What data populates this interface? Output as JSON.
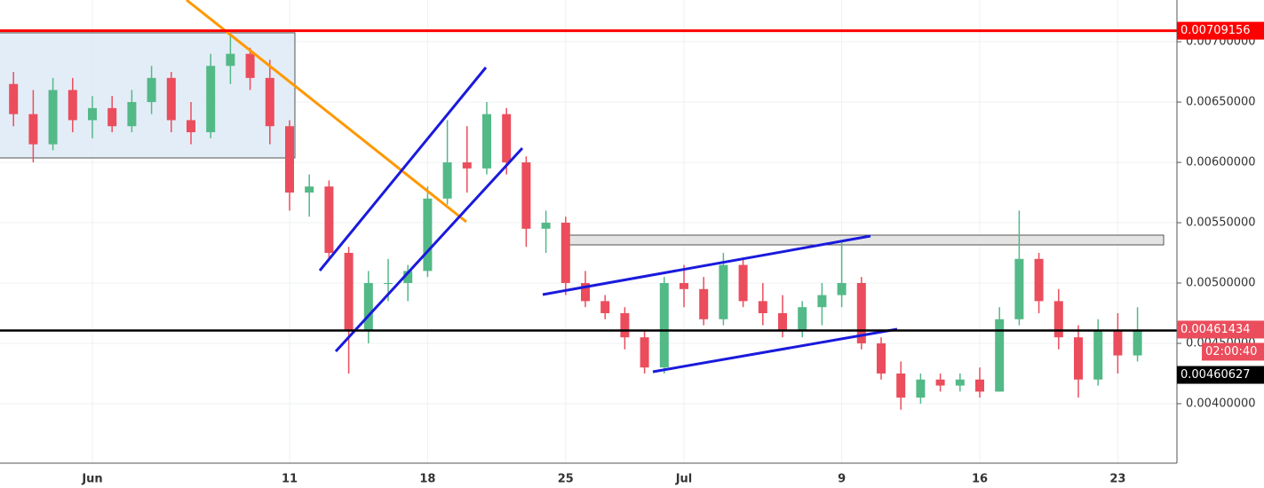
{
  "chart_data": {
    "type": "candlestick",
    "categories": [
      null,
      null,
      null,
      null,
      "Jun",
      null,
      null,
      null,
      null,
      null,
      null,
      null,
      null,
      null,
      "11",
      null,
      null,
      null,
      null,
      null,
      null,
      "18",
      null,
      null,
      null,
      null,
      null,
      null,
      "25",
      null,
      null,
      null,
      null,
      null,
      "Jul",
      null,
      null,
      null,
      null,
      null,
      null,
      null,
      "9",
      null,
      null,
      null,
      null,
      null,
      null,
      "16",
      null,
      null,
      null,
      null,
      null,
      null,
      "23",
      null
    ],
    "open": [
      0.00665,
      0.0064,
      0.00615,
      0.0066,
      0.00635,
      0.00645,
      0.0063,
      0.0065,
      0.0067,
      0.00635,
      0.00625,
      0.0068,
      0.0069,
      0.0067,
      0.0063,
      0.00575,
      0.0058,
      0.00525,
      0.0046,
      0.005,
      0.005,
      0.0051,
      0.0057,
      0.006,
      0.00595,
      0.0064,
      0.006,
      0.00545,
      0.0055,
      0.005,
      0.00485,
      0.00475,
      0.00455,
      0.0043,
      0.005,
      0.00495,
      0.0047,
      0.00515,
      0.00485,
      0.00475,
      0.0046,
      0.0048,
      0.0049,
      0.005,
      0.0045,
      0.00425,
      0.00405,
      0.0042,
      0.00415,
      0.0042,
      0.0041,
      0.0047,
      0.0052,
      0.00485,
      0.00455,
      0.0042,
      0.0046,
      0.0044
    ],
    "high": [
      0.00675,
      0.0066,
      0.0067,
      0.0067,
      0.00655,
      0.00655,
      0.0066,
      0.0068,
      0.00675,
      0.0065,
      0.0069,
      0.00705,
      0.00695,
      0.00685,
      0.00635,
      0.0059,
      0.00585,
      0.0053,
      0.0051,
      0.0052,
      0.00515,
      0.0058,
      0.00635,
      0.0063,
      0.0065,
      0.00645,
      0.00605,
      0.0056,
      0.00555,
      0.0051,
      0.0049,
      0.0048,
      0.0046,
      0.00505,
      0.00515,
      0.00505,
      0.00525,
      0.0052,
      0.005,
      0.0049,
      0.00485,
      0.005,
      0.00535,
      0.00505,
      0.00455,
      0.00435,
      0.00425,
      0.00425,
      0.00425,
      0.0043,
      0.0048,
      0.0056,
      0.00525,
      0.00495,
      0.00465,
      0.0047,
      0.00475,
      0.0048
    ],
    "low": [
      0.0063,
      0.006,
      0.0061,
      0.00625,
      0.0062,
      0.00625,
      0.00625,
      0.0064,
      0.00625,
      0.00615,
      0.0062,
      0.00665,
      0.0066,
      0.00615,
      0.0056,
      0.00555,
      0.0052,
      0.00425,
      0.0045,
      0.00485,
      0.00485,
      0.00505,
      0.00565,
      0.00575,
      0.0059,
      0.0059,
      0.0053,
      0.00525,
      0.0049,
      0.0048,
      0.0047,
      0.00445,
      0.00425,
      0.00425,
      0.0048,
      0.00465,
      0.00465,
      0.0048,
      0.00465,
      0.00455,
      0.00455,
      0.00465,
      0.0048,
      0.00445,
      0.0042,
      0.00395,
      0.004,
      0.0041,
      0.0041,
      0.00405,
      0.0041,
      0.00465,
      0.00475,
      0.00445,
      0.00405,
      0.00415,
      0.00425,
      0.00435
    ],
    "close": [
      0.0064,
      0.00615,
      0.0066,
      0.00635,
      0.00645,
      0.0063,
      0.0065,
      0.0067,
      0.00635,
      0.00625,
      0.0068,
      0.0069,
      0.0067,
      0.0063,
      0.00575,
      0.0058,
      0.00525,
      0.0046,
      0.005,
      0.005,
      0.0051,
      0.0057,
      0.006,
      0.00595,
      0.0064,
      0.006,
      0.00545,
      0.0055,
      0.005,
      0.00485,
      0.00475,
      0.00455,
      0.0043,
      0.005,
      0.00495,
      0.0047,
      0.00515,
      0.00485,
      0.00475,
      0.0046,
      0.0048,
      0.0049,
      0.005,
      0.0045,
      0.00425,
      0.00405,
      0.0042,
      0.00415,
      0.0042,
      0.0041,
      0.0047,
      0.0052,
      0.00485,
      0.00455,
      0.0042,
      0.0046,
      0.0044,
      0.00461
    ],
    "up_color": "#53b987",
    "down_color": "#eb4d5c",
    "ylim": [
      0.003507,
      0.007346
    ],
    "yticks": [
      {
        "value": 0.004,
        "label": "0.00400000"
      },
      {
        "value": 0.0045,
        "label": "0.00450000"
      },
      {
        "value": 0.005,
        "label": "0.00500000"
      },
      {
        "value": 0.0055,
        "label": "0.00550000"
      },
      {
        "value": 0.006,
        "label": "0.00600000"
      },
      {
        "value": 0.0065,
        "label": "0.00650000"
      },
      {
        "value": 0.007,
        "label": "0.00700000"
      }
    ],
    "grid": true,
    "price_lines": [
      {
        "value": 0.00709156,
        "color": "#ff0000"
      },
      {
        "value": 0.00461434,
        "color": "#eb4d5c"
      },
      {
        "value": 0.00460627,
        "color": "#000000"
      }
    ],
    "countdown": "02:00:40"
  }
}
